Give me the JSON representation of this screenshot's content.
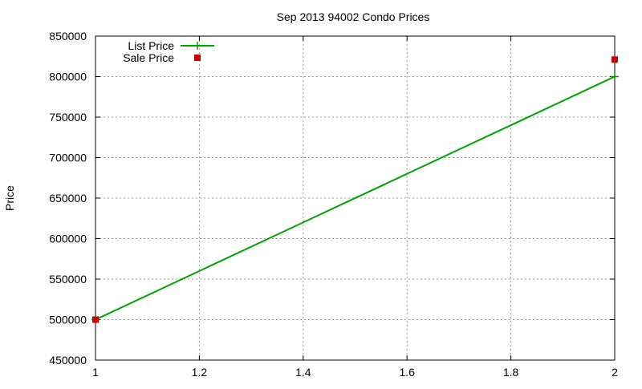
{
  "chart_data": {
    "type": "line",
    "title": "Sep 2013 94002 Condo Prices",
    "xlabel": "",
    "ylabel": "Price",
    "xlim": [
      1,
      2
    ],
    "ylim": [
      450000,
      850000
    ],
    "x_ticks": [
      "1",
      "1.2",
      "1.4",
      "1.6",
      "1.8",
      "2"
    ],
    "x_tick_values": [
      1,
      1.2,
      1.4,
      1.6,
      1.8,
      2
    ],
    "y_ticks": [
      "450000",
      "500000",
      "550000",
      "600000",
      "650000",
      "700000",
      "750000",
      "800000",
      "850000"
    ],
    "y_tick_values": [
      450000,
      500000,
      550000,
      600000,
      650000,
      700000,
      750000,
      800000,
      850000
    ],
    "grid": true,
    "legend_placement": "top-left",
    "series": [
      {
        "name": "List Price",
        "style": "linespoints",
        "color": "#00a000",
        "x": [
          1,
          2
        ],
        "values": [
          500000,
          800000
        ]
      },
      {
        "name": "Sale Price",
        "style": "points",
        "color": "#cc0000",
        "x": [
          1,
          2
        ],
        "values": [
          500000,
          821000
        ]
      }
    ]
  }
}
